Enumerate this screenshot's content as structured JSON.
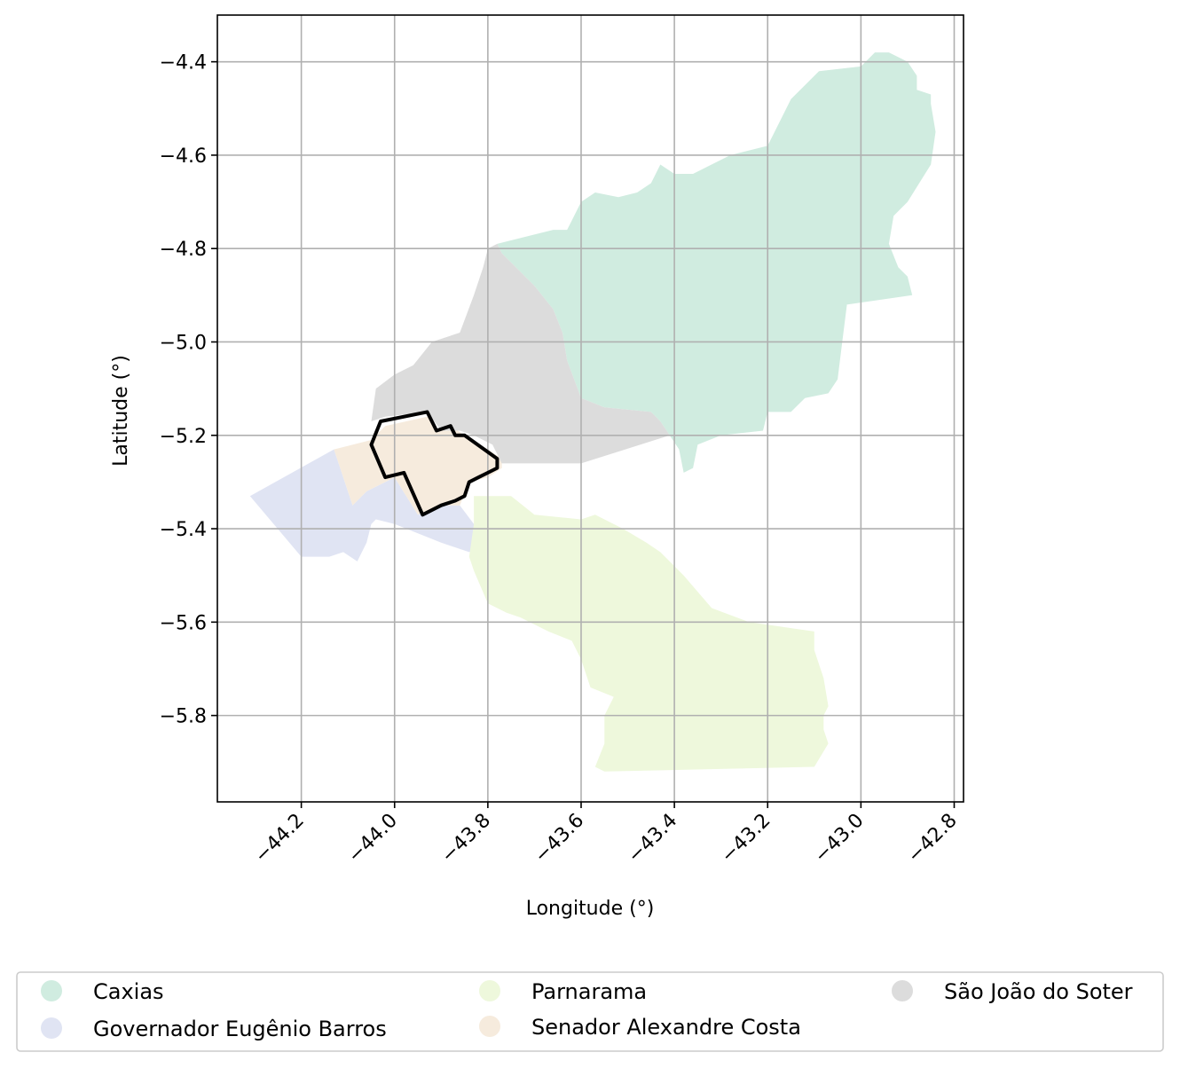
{
  "chart_data": {
    "type": "map",
    "xlabel": "Longitude (°)",
    "ylabel": "Latitude (°)",
    "xlim": [
      -44.38,
      -42.78
    ],
    "ylim": [
      -5.985,
      -4.3
    ],
    "grid": true,
    "x_ticks": [
      "−44.2",
      "−44.0",
      "−43.8",
      "−43.6",
      "−43.4",
      "−43.2",
      "−43.0",
      "−42.8"
    ],
    "x_tick_values": [
      -44.2,
      -44.0,
      -43.8,
      -43.6,
      -43.4,
      -43.2,
      -43.0,
      -42.8
    ],
    "y_ticks": [
      "−4.4",
      "−4.6",
      "−4.8",
      "−5.0",
      "−5.2",
      "−5.4",
      "−5.6",
      "−5.8"
    ],
    "y_tick_values": [
      -4.4,
      -4.6,
      -4.8,
      -5.0,
      -5.2,
      -5.4,
      -5.6,
      -5.8
    ],
    "legend_position": "bottom",
    "regions": [
      {
        "name": "Caxias",
        "color": "#d0ece0",
        "coords": [
          [
            -43.78,
            -4.79
          ],
          [
            -43.7,
            -4.77
          ],
          [
            -43.66,
            -4.76
          ],
          [
            -43.63,
            -4.76
          ],
          [
            -43.62,
            -4.74
          ],
          [
            -43.6,
            -4.7
          ],
          [
            -43.57,
            -4.68
          ],
          [
            -43.52,
            -4.69
          ],
          [
            -43.48,
            -4.68
          ],
          [
            -43.45,
            -4.66
          ],
          [
            -43.43,
            -4.62
          ],
          [
            -43.4,
            -4.64
          ],
          [
            -43.36,
            -4.64
          ],
          [
            -43.28,
            -4.6
          ],
          [
            -43.2,
            -4.58
          ],
          [
            -43.15,
            -4.48
          ],
          [
            -43.09,
            -4.42
          ],
          [
            -43.0,
            -4.41
          ],
          [
            -42.97,
            -4.38
          ],
          [
            -42.94,
            -4.38
          ],
          [
            -42.9,
            -4.4
          ],
          [
            -42.88,
            -4.43
          ],
          [
            -42.88,
            -4.46
          ],
          [
            -42.85,
            -4.47
          ],
          [
            -42.85,
            -4.49
          ],
          [
            -42.84,
            -4.55
          ],
          [
            -42.85,
            -4.62
          ],
          [
            -42.9,
            -4.7
          ],
          [
            -42.93,
            -4.73
          ],
          [
            -42.94,
            -4.79
          ],
          [
            -42.92,
            -4.84
          ],
          [
            -42.9,
            -4.86
          ],
          [
            -42.89,
            -4.9
          ],
          [
            -43.03,
            -4.92
          ],
          [
            -43.04,
            -5.0
          ],
          [
            -43.05,
            -5.08
          ],
          [
            -43.07,
            -5.11
          ],
          [
            -43.12,
            -5.12
          ],
          [
            -43.15,
            -5.15
          ],
          [
            -43.2,
            -5.15
          ],
          [
            -43.21,
            -5.19
          ],
          [
            -43.3,
            -5.2
          ],
          [
            -43.35,
            -5.22
          ],
          [
            -43.36,
            -5.27
          ],
          [
            -43.38,
            -5.28
          ],
          [
            -43.39,
            -5.23
          ],
          [
            -43.43,
            -5.17
          ],
          [
            -43.45,
            -5.15
          ],
          [
            -43.55,
            -5.14
          ],
          [
            -43.6,
            -5.12
          ],
          [
            -43.63,
            -5.04
          ],
          [
            -43.64,
            -4.98
          ],
          [
            -43.66,
            -4.93
          ],
          [
            -43.7,
            -4.88
          ],
          [
            -43.73,
            -4.85
          ],
          [
            -43.77,
            -4.81
          ]
        ]
      },
      {
        "name": "Governador Eugênio Barros",
        "color": "#e0e4f3",
        "coords": [
          [
            -44.31,
            -5.33
          ],
          [
            -44.13,
            -5.23
          ],
          [
            -44.09,
            -5.35
          ],
          [
            -44.06,
            -5.32
          ],
          [
            -44.0,
            -5.29
          ],
          [
            -43.95,
            -5.37
          ],
          [
            -43.9,
            -5.35
          ],
          [
            -43.86,
            -5.35
          ],
          [
            -43.83,
            -5.39
          ],
          [
            -43.8,
            -5.44
          ],
          [
            -43.84,
            -5.45
          ],
          [
            -43.9,
            -5.43
          ],
          [
            -44.0,
            -5.39
          ],
          [
            -44.04,
            -5.38
          ],
          [
            -44.05,
            -5.39
          ],
          [
            -44.06,
            -5.43
          ],
          [
            -44.07,
            -5.45
          ],
          [
            -44.08,
            -5.47
          ],
          [
            -44.11,
            -5.45
          ],
          [
            -44.14,
            -5.46
          ],
          [
            -44.2,
            -5.46
          ]
        ]
      },
      {
        "name": "Parnarama",
        "color": "#eef8dc",
        "coords": [
          [
            -43.83,
            -5.33
          ],
          [
            -43.83,
            -5.39
          ],
          [
            -43.84,
            -5.46
          ],
          [
            -43.83,
            -5.49
          ],
          [
            -43.8,
            -5.56
          ],
          [
            -43.76,
            -5.58
          ],
          [
            -43.73,
            -5.59
          ],
          [
            -43.67,
            -5.62
          ],
          [
            -43.62,
            -5.64
          ],
          [
            -43.6,
            -5.68
          ],
          [
            -43.58,
            -5.74
          ],
          [
            -43.53,
            -5.76
          ],
          [
            -43.55,
            -5.8
          ],
          [
            -43.55,
            -5.86
          ],
          [
            -43.57,
            -5.91
          ],
          [
            -43.55,
            -5.92
          ],
          [
            -43.1,
            -5.91
          ],
          [
            -43.07,
            -5.86
          ],
          [
            -43.08,
            -5.83
          ],
          [
            -43.08,
            -5.8
          ],
          [
            -43.07,
            -5.78
          ],
          [
            -43.08,
            -5.72
          ],
          [
            -43.1,
            -5.66
          ],
          [
            -43.1,
            -5.62
          ],
          [
            -43.24,
            -5.6
          ],
          [
            -43.32,
            -5.57
          ],
          [
            -43.38,
            -5.5
          ],
          [
            -43.43,
            -5.45
          ],
          [
            -43.46,
            -5.43
          ],
          [
            -43.51,
            -5.4
          ],
          [
            -43.57,
            -5.37
          ],
          [
            -43.6,
            -5.38
          ],
          [
            -43.7,
            -5.37
          ],
          [
            -43.75,
            -5.33
          ]
        ]
      },
      {
        "name": "Senador Alexandre Costa",
        "color": "#f6ebdd",
        "coords": [
          [
            -44.13,
            -5.23
          ],
          [
            -44.05,
            -5.21
          ],
          [
            -44.02,
            -5.18
          ],
          [
            -43.93,
            -5.16
          ],
          [
            -43.91,
            -5.19
          ],
          [
            -43.88,
            -5.18
          ],
          [
            -43.85,
            -5.2
          ],
          [
            -43.8,
            -5.23
          ],
          [
            -43.77,
            -5.25
          ],
          [
            -43.77,
            -5.27
          ],
          [
            -43.8,
            -5.29
          ],
          [
            -43.84,
            -5.3
          ],
          [
            -43.86,
            -5.35
          ],
          [
            -43.9,
            -5.35
          ],
          [
            -43.95,
            -5.37
          ],
          [
            -44.0,
            -5.29
          ],
          [
            -44.06,
            -5.32
          ],
          [
            -44.09,
            -5.35
          ]
        ]
      },
      {
        "name": "São João do Soter",
        "color": "#dcdcdc",
        "coords": [
          [
            -43.78,
            -4.79
          ],
          [
            -43.77,
            -4.81
          ],
          [
            -43.73,
            -4.85
          ],
          [
            -43.7,
            -4.88
          ],
          [
            -43.66,
            -4.93
          ],
          [
            -43.64,
            -4.98
          ],
          [
            -43.63,
            -5.04
          ],
          [
            -43.6,
            -5.12
          ],
          [
            -43.55,
            -5.14
          ],
          [
            -43.45,
            -5.15
          ],
          [
            -43.43,
            -5.17
          ],
          [
            -43.41,
            -5.2
          ],
          [
            -43.6,
            -5.26
          ],
          [
            -43.77,
            -5.26
          ],
          [
            -43.79,
            -5.22
          ],
          [
            -43.83,
            -5.2
          ],
          [
            -43.86,
            -5.19
          ],
          [
            -43.9,
            -5.19
          ],
          [
            -43.93,
            -5.15
          ],
          [
            -44.02,
            -5.16
          ],
          [
            -44.05,
            -5.17
          ],
          [
            -44.04,
            -5.1
          ],
          [
            -44.0,
            -5.07
          ],
          [
            -43.96,
            -5.05
          ],
          [
            -43.92,
            -5.0
          ],
          [
            -43.86,
            -4.98
          ],
          [
            -43.83,
            -4.9
          ],
          [
            -43.81,
            -4.84
          ],
          [
            -43.8,
            -4.8
          ]
        ]
      }
    ],
    "highlight": {
      "color": "#000000",
      "coords": [
        [
          -44.03,
          -5.17
        ],
        [
          -43.93,
          -5.15
        ],
        [
          -43.91,
          -5.19
        ],
        [
          -43.88,
          -5.18
        ],
        [
          -43.87,
          -5.2
        ],
        [
          -43.85,
          -5.2
        ],
        [
          -43.78,
          -5.25
        ],
        [
          -43.78,
          -5.27
        ],
        [
          -43.8,
          -5.28
        ],
        [
          -43.82,
          -5.29
        ],
        [
          -43.84,
          -5.3
        ],
        [
          -43.85,
          -5.33
        ],
        [
          -43.87,
          -5.34
        ],
        [
          -43.9,
          -5.35
        ],
        [
          -43.94,
          -5.37
        ],
        [
          -43.98,
          -5.28
        ],
        [
          -44.02,
          -5.29
        ],
        [
          -44.05,
          -5.22
        ]
      ]
    }
  },
  "legend": {
    "items": [
      {
        "label": "Caxias",
        "color": "#d0ece0"
      },
      {
        "label": "Governador Eugênio Barros",
        "color": "#e0e4f3"
      },
      {
        "label": "Parnarama",
        "color": "#eef8dc"
      },
      {
        "label": "Senador Alexandre Costa",
        "color": "#f6ebdd"
      },
      {
        "label": "São João do Soter",
        "color": "#dcdcdc"
      }
    ]
  }
}
